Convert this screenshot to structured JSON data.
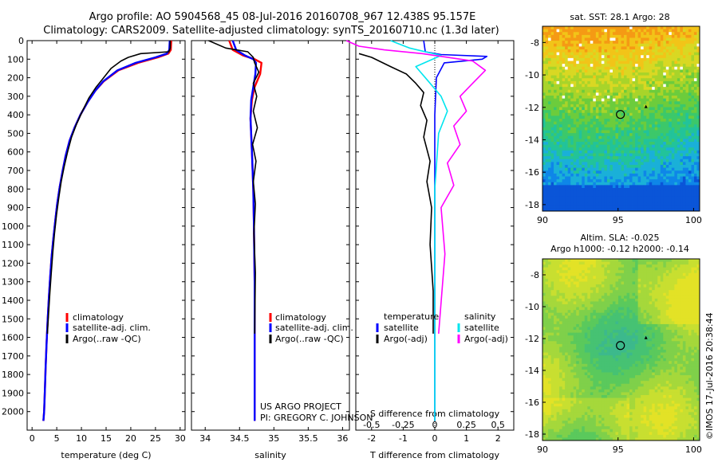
{
  "header": {
    "line1": "Argo profile: AO 5904568_45 08-Jul-2016 20160708_967 12.438S 95.157E",
    "line2": "Climatology: CARS2009. Satellite-adjusted climatology: synTS_20160710.nc (1.3d later)"
  },
  "colors": {
    "climatology": "#ff0000",
    "satellite": "#0000ff",
    "argo": "#000000",
    "sal_satellite": "#00e5ee",
    "sal_argo": "#ff00ff"
  },
  "legends": {
    "temp_panel": [
      "climatology",
      "satellite-adj. clim.",
      "Argo(..raw -QC)"
    ],
    "sal_panel": [
      "climatology",
      "satellite-adj. clim.",
      "Argo(..raw -QC)"
    ],
    "diff_panel": {
      "temp_title": "temperature",
      "sal_title": "salinity",
      "temp_items": [
        "satellite",
        "Argo(-adj)"
      ],
      "sal_items": [
        "satellite",
        "Argo(-adj)"
      ]
    }
  },
  "annotations": {
    "project": "US ARGO PROJECT",
    "pi": "PI: GREGORY C. JOHNSON"
  },
  "maps": {
    "sst_title": "sat. SST: 28.1 Argo: 28",
    "sla_title1": "Altim. SLA: -0.025",
    "sla_title2": "Argo h1000: -0.12 h2000: -0.14",
    "footer_stamp": "©IMOS 17-Jul-2016 20:38:44",
    "sst_yticks": [
      "-8",
      "-10",
      "-12",
      "-14",
      "-16",
      "-18"
    ],
    "sla_yticks": [
      "-8",
      "-10",
      "-12",
      "-14",
      "-16",
      "-18"
    ],
    "xticks": [
      "90",
      "95",
      "100"
    ],
    "profile_location": "12.438S 95.157E"
  },
  "chart_data": [
    {
      "type": "line",
      "name": "temperature-profile",
      "xlabel": "temperature (deg C)",
      "ylabel": "",
      "xlim": [
        -1,
        31
      ],
      "ylim": [
        2100,
        0
      ],
      "xticks": [
        0,
        5,
        10,
        15,
        20,
        25,
        30
      ],
      "yticks": [
        0,
        100,
        200,
        300,
        400,
        500,
        600,
        700,
        800,
        900,
        1000,
        1100,
        1200,
        1300,
        1400,
        1500,
        1600,
        1700,
        1800,
        1900,
        2000
      ],
      "series": [
        {
          "name": "climatology",
          "color": "#ff0000",
          "x": [
            28.2,
            28.1,
            27.6,
            25.5,
            21.5,
            17.5,
            14.5,
            12.8,
            11.3,
            9.8,
            8.6,
            7.6,
            6.8,
            6.2,
            5.6,
            5.1,
            4.7,
            4.3,
            3.95,
            3.65,
            3.4,
            3.15,
            2.95,
            2.75,
            2.6,
            2.45,
            2.3
          ],
          "y": [
            0,
            50,
            70,
            90,
            120,
            160,
            220,
            270,
            330,
            400,
            470,
            540,
            620,
            700,
            790,
            880,
            970,
            1070,
            1170,
            1280,
            1390,
            1510,
            1630,
            1760,
            1880,
            2000,
            2050
          ]
        },
        {
          "name": "satellite-adj. clim.",
          "color": "#0000ff",
          "x": [
            27.9,
            27.8,
            27.3,
            25.0,
            21.0,
            17.3,
            14.4,
            12.8,
            11.3,
            9.8,
            8.6,
            7.6,
            6.8,
            6.2,
            5.6,
            5.1,
            4.7,
            4.3,
            3.95,
            3.65,
            3.4,
            3.15,
            2.95,
            2.75,
            2.6,
            2.45,
            2.3
          ],
          "y": [
            0,
            50,
            70,
            90,
            120,
            160,
            220,
            270,
            330,
            400,
            470,
            540,
            620,
            700,
            790,
            880,
            970,
            1070,
            1170,
            1280,
            1390,
            1510,
            1630,
            1760,
            1880,
            2000,
            2050
          ]
        },
        {
          "name": "Argo(..raw -QC)",
          "color": "#000000",
          "x": [
            28.0,
            28.0,
            27.7,
            22.0,
            19.5,
            18.0,
            16.0,
            14.5,
            13.0,
            11.5,
            10.2,
            9.0,
            8.0,
            7.2,
            6.5,
            5.9,
            5.4,
            4.95,
            4.55,
            4.2,
            3.9,
            3.6,
            3.35,
            3.1
          ],
          "y": [
            0,
            40,
            60,
            70,
            90,
            110,
            150,
            200,
            250,
            310,
            380,
            450,
            520,
            600,
            680,
            760,
            850,
            940,
            1040,
            1140,
            1250,
            1360,
            1470,
            1580
          ]
        }
      ]
    },
    {
      "type": "line",
      "name": "salinity-profile",
      "xlabel": "salinity",
      "ylabel": "",
      "xlim": [
        33.8,
        36.1
      ],
      "ylim": [
        2100,
        0
      ],
      "xticks": [
        34,
        34.5,
        35,
        35.5,
        36
      ],
      "series": [
        {
          "name": "climatology",
          "color": "#ff0000",
          "x": [
            34.35,
            34.4,
            34.55,
            34.72,
            34.82,
            34.8,
            34.72,
            34.68,
            34.66,
            34.68,
            34.7,
            34.71,
            34.72,
            34.72,
            34.72,
            34.72
          ],
          "y": [
            0,
            50,
            80,
            100,
            120,
            180,
            250,
            320,
            420,
            600,
            800,
            1000,
            1300,
            1600,
            1800,
            2050
          ]
        },
        {
          "name": "satellite-adj. clim.",
          "color": "#0000ff",
          "x": [
            34.4,
            34.45,
            34.58,
            34.7,
            34.74,
            34.73,
            34.7,
            34.67,
            34.66,
            34.68,
            34.7,
            34.71,
            34.72,
            34.72,
            34.72,
            34.72
          ],
          "y": [
            0,
            50,
            80,
            100,
            120,
            180,
            250,
            320,
            420,
            600,
            800,
            1000,
            1300,
            1600,
            1800,
            2050
          ]
        },
        {
          "name": "Argo(..raw -QC)",
          "color": "#000000",
          "x": [
            34.05,
            34.3,
            34.62,
            34.7,
            34.72,
            34.78,
            34.7,
            34.75,
            34.7,
            34.76,
            34.69,
            34.74,
            34.7,
            34.73,
            34.71,
            34.73,
            34.72
          ],
          "y": [
            0,
            40,
            60,
            90,
            120,
            170,
            230,
            300,
            380,
            470,
            560,
            650,
            760,
            880,
            1040,
            1250,
            1580
          ]
        }
      ]
    },
    {
      "type": "line",
      "name": "difference-from-climatology",
      "xlabel": "T difference from climatology",
      "top_label": "S difference from climatology",
      "xlim": [
        -2.5,
        2.5
      ],
      "ylim": [
        2100,
        0
      ],
      "xticks": [
        -2,
        -1,
        0,
        1,
        2
      ],
      "sal_xticks": [
        "-0.5",
        "-0.25",
        "0",
        "0.25",
        "0.5"
      ],
      "series": [
        {
          "name": "temperature satellite",
          "color": "#0000ff",
          "x": [
            -0.35,
            -0.3,
            0.2,
            1.65,
            1.5,
            0.3,
            0.05,
            0.0,
            0.0,
            0.0,
            0.0
          ],
          "y": [
            0,
            60,
            75,
            85,
            100,
            120,
            200,
            400,
            800,
            1500,
            2050
          ]
        },
        {
          "name": "temperature Argo(-adj)",
          "color": "#000000",
          "x": [
            -2.4,
            -2.0,
            -1.4,
            -0.9,
            -0.6,
            -0.35,
            -0.45,
            -0.25,
            -0.35,
            -0.15,
            -0.25,
            -0.1,
            -0.15,
            -0.05,
            -0.05
          ],
          "y": [
            70,
            90,
            140,
            180,
            230,
            280,
            350,
            430,
            520,
            650,
            760,
            900,
            1100,
            1350,
            1580
          ]
        },
        {
          "name": "salinity satellite",
          "color": "#00e5ee",
          "x": [
            -0.35,
            -0.2,
            0.05,
            -0.15,
            -0.05,
            0.05,
            0.1,
            0.03,
            0.0,
            0.0,
            0.0
          ],
          "y": [
            0,
            40,
            80,
            140,
            220,
            300,
            380,
            500,
            800,
            1500,
            2050
          ]
        },
        {
          "name": "salinity Argo(-adj)",
          "color": "#ff00ff",
          "x": [
            -0.7,
            -0.6,
            -0.4,
            -0.1,
            0.3,
            0.4,
            0.3,
            0.2,
            0.25,
            0.15,
            0.2,
            0.1,
            0.15,
            0.05,
            0.08,
            0.03
          ],
          "y": [
            0,
            30,
            50,
            70,
            110,
            160,
            230,
            300,
            380,
            460,
            560,
            660,
            780,
            900,
            1150,
            1580
          ]
        }
      ]
    }
  ]
}
